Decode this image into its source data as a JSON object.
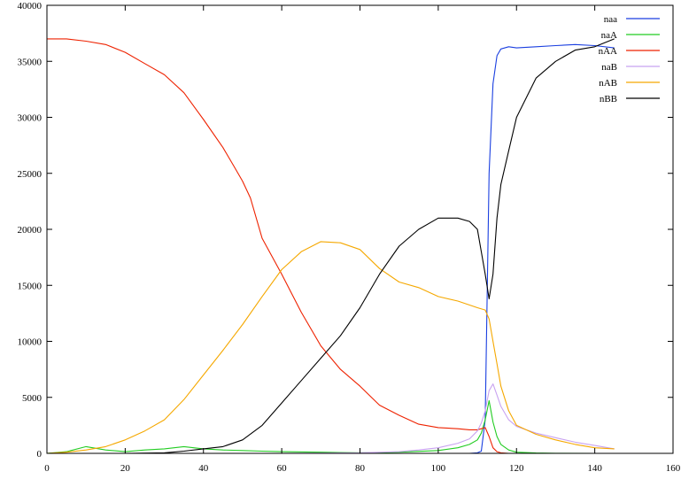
{
  "chart_data": {
    "type": "line",
    "title": "",
    "xlabel": "",
    "ylabel": "",
    "xlim": [
      0,
      160
    ],
    "ylim": [
      0,
      40000
    ],
    "xticks": [
      0,
      20,
      40,
      60,
      80,
      100,
      120,
      140,
      160
    ],
    "yticks": [
      0,
      5000,
      10000,
      15000,
      20000,
      25000,
      30000,
      35000,
      40000
    ],
    "xtick_labels": [
      "0",
      "20",
      "40",
      "60",
      "80",
      "100",
      "120",
      "140",
      "160"
    ],
    "ytick_labels": [
      "0",
      "5000",
      "10000",
      "15000",
      "20000",
      "25000",
      "30000",
      "35000",
      "40000"
    ],
    "grid": false,
    "legend_position": "top-right",
    "series": [
      {
        "name": "naa",
        "color": "#1a3fe0",
        "x": [
          0,
          20,
          40,
          60,
          80,
          100,
          108,
          110,
          111,
          112,
          113,
          114,
          115,
          116,
          118,
          120,
          125,
          130,
          135,
          140,
          145
        ],
        "y": [
          0,
          0,
          0,
          0,
          0,
          0,
          0,
          50,
          200,
          3000,
          25000,
          33000,
          35500,
          36100,
          36300,
          36200,
          36300,
          36400,
          36500,
          36400,
          36200
        ]
      },
      {
        "name": "naA",
        "color": "#22cc22",
        "x": [
          0,
          5,
          10,
          15,
          20,
          25,
          30,
          35,
          40,
          45,
          50,
          55,
          60,
          70,
          80,
          90,
          100,
          105,
          108,
          110,
          111,
          112,
          113,
          114,
          115,
          116,
          118,
          120,
          125,
          130,
          140,
          145
        ],
        "y": [
          0,
          150,
          600,
          300,
          150,
          300,
          400,
          600,
          400,
          300,
          250,
          200,
          150,
          100,
          50,
          100,
          250,
          500,
          800,
          1200,
          1800,
          3000,
          4700,
          2800,
          1500,
          800,
          300,
          100,
          30,
          10,
          0,
          0
        ]
      },
      {
        "name": "nAA",
        "color": "#ee2200",
        "x": [
          0,
          5,
          10,
          15,
          20,
          25,
          30,
          35,
          40,
          45,
          48,
          50,
          52,
          55,
          60,
          65,
          70,
          75,
          80,
          85,
          90,
          95,
          100,
          105,
          108,
          110,
          111,
          112,
          113,
          114,
          115,
          116,
          118,
          120,
          125
        ],
        "y": [
          37000,
          37000,
          36800,
          36500,
          35800,
          34800,
          33800,
          32200,
          29800,
          27300,
          25500,
          24300,
          22800,
          19200,
          16000,
          12600,
          9600,
          7500,
          6000,
          4300,
          3400,
          2600,
          2300,
          2200,
          2100,
          2100,
          2200,
          2300,
          1500,
          500,
          150,
          50,
          0,
          0,
          0
        ]
      },
      {
        "name": "naB",
        "color": "#c8a2f0",
        "x": [
          0,
          20,
          40,
          60,
          80,
          90,
          95,
          100,
          105,
          108,
          110,
          111,
          112,
          113,
          114,
          115,
          116,
          118,
          120,
          125,
          130,
          135,
          140,
          145
        ],
        "y": [
          0,
          0,
          0,
          0,
          50,
          150,
          300,
          500,
          900,
          1300,
          2000,
          2700,
          3800,
          5600,
          6200,
          5200,
          4200,
          3000,
          2400,
          1800,
          1400,
          1000,
          700,
          400
        ]
      },
      {
        "name": "nAB",
        "color": "#f5a800",
        "x": [
          0,
          5,
          10,
          15,
          20,
          25,
          30,
          35,
          40,
          45,
          50,
          55,
          60,
          65,
          70,
          75,
          80,
          85,
          90,
          95,
          100,
          105,
          110,
          112,
          113,
          114,
          115,
          116,
          118,
          120,
          125,
          130,
          135,
          140,
          145
        ],
        "y": [
          0,
          100,
          300,
          600,
          1200,
          2000,
          3000,
          4800,
          7000,
          9200,
          11500,
          14000,
          16400,
          18000,
          18900,
          18800,
          18200,
          16500,
          15300,
          14800,
          14000,
          13600,
          13000,
          12800,
          12000,
          10000,
          8000,
          6000,
          3800,
          2500,
          1700,
          1200,
          800,
          500,
          400
        ]
      },
      {
        "name": "nBB",
        "color": "#000000",
        "x": [
          0,
          20,
          30,
          35,
          40,
          45,
          50,
          55,
          60,
          65,
          70,
          75,
          80,
          85,
          90,
          95,
          100,
          105,
          108,
          110,
          111,
          112,
          113,
          114,
          115,
          116,
          118,
          120,
          125,
          130,
          135,
          140,
          145
        ],
        "y": [
          0,
          0,
          50,
          200,
          400,
          600,
          1200,
          2500,
          4500,
          6500,
          8500,
          10500,
          13000,
          16000,
          18500,
          20000,
          21000,
          21000,
          20700,
          20000,
          18000,
          16000,
          13800,
          16000,
          21000,
          24000,
          27000,
          30000,
          33500,
          35000,
          36000,
          36300,
          37000
        ]
      }
    ]
  }
}
